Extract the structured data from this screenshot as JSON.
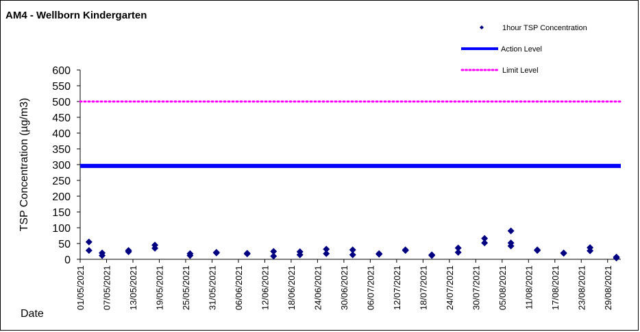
{
  "chart_data": {
    "type": "scatter",
    "title": "AM4 - Wellborn Kindergarten",
    "xlabel": "Date",
    "ylabel": "TSP Concentration (µg/m3)",
    "ylim": [
      0,
      600
    ],
    "yticks": [
      0,
      50,
      100,
      150,
      200,
      250,
      300,
      350,
      400,
      450,
      500,
      550,
      600
    ],
    "xlim": [
      "2021-05-01",
      "2021-09-01"
    ],
    "xticks": [
      "01/05/2021",
      "07/05/2021",
      "13/05/2021",
      "19/05/2021",
      "25/05/2021",
      "31/05/2021",
      "06/06/2021",
      "12/06/2021",
      "18/06/2021",
      "24/06/2021",
      "30/06/2021",
      "06/07/2021",
      "12/07/2021",
      "18/07/2021",
      "24/07/2021",
      "30/07/2021",
      "05/08/2021",
      "11/08/2021",
      "17/08/2021",
      "23/08/2021",
      "29/08/2021"
    ],
    "grid": false,
    "legend": "top-right",
    "series": [
      {
        "name": "1hour TSP Concentration",
        "type": "scatter",
        "color": "#000080",
        "points": [
          [
            "2021-05-03",
            55
          ],
          [
            "2021-05-03",
            28
          ],
          [
            "2021-05-06",
            20
          ],
          [
            "2021-05-06",
            12
          ],
          [
            "2021-05-12",
            28
          ],
          [
            "2021-05-12",
            24
          ],
          [
            "2021-05-18",
            45
          ],
          [
            "2021-05-18",
            35
          ],
          [
            "2021-05-26",
            18
          ],
          [
            "2021-05-26",
            12
          ],
          [
            "2021-06-01",
            22
          ],
          [
            "2021-06-01",
            20
          ],
          [
            "2021-06-08",
            19
          ],
          [
            "2021-06-08",
            17
          ],
          [
            "2021-06-14",
            25
          ],
          [
            "2021-06-14",
            10
          ],
          [
            "2021-06-20",
            24
          ],
          [
            "2021-06-20",
            14
          ],
          [
            "2021-06-26",
            32
          ],
          [
            "2021-06-26",
            18
          ],
          [
            "2021-07-02",
            30
          ],
          [
            "2021-07-02",
            14
          ],
          [
            "2021-07-08",
            18
          ],
          [
            "2021-07-08",
            16
          ],
          [
            "2021-07-14",
            30
          ],
          [
            "2021-07-14",
            28
          ],
          [
            "2021-07-20",
            14
          ],
          [
            "2021-07-20",
            12
          ],
          [
            "2021-07-26",
            36
          ],
          [
            "2021-07-26",
            22
          ],
          [
            "2021-08-01",
            66
          ],
          [
            "2021-08-01",
            52
          ],
          [
            "2021-08-07",
            90
          ],
          [
            "2021-08-07",
            52
          ],
          [
            "2021-08-07",
            42
          ],
          [
            "2021-08-13",
            30
          ],
          [
            "2021-08-13",
            28
          ],
          [
            "2021-08-19",
            20
          ],
          [
            "2021-08-19",
            19
          ],
          [
            "2021-08-25",
            37
          ],
          [
            "2021-08-25",
            27
          ],
          [
            "2021-08-31",
            7
          ],
          [
            "2021-08-31",
            4
          ]
        ]
      },
      {
        "name": "Action Level",
        "type": "line",
        "color": "#0000ff",
        "y": 296
      },
      {
        "name": "Limit Level",
        "type": "line",
        "color": "#ff00ff",
        "y": 500
      }
    ]
  }
}
